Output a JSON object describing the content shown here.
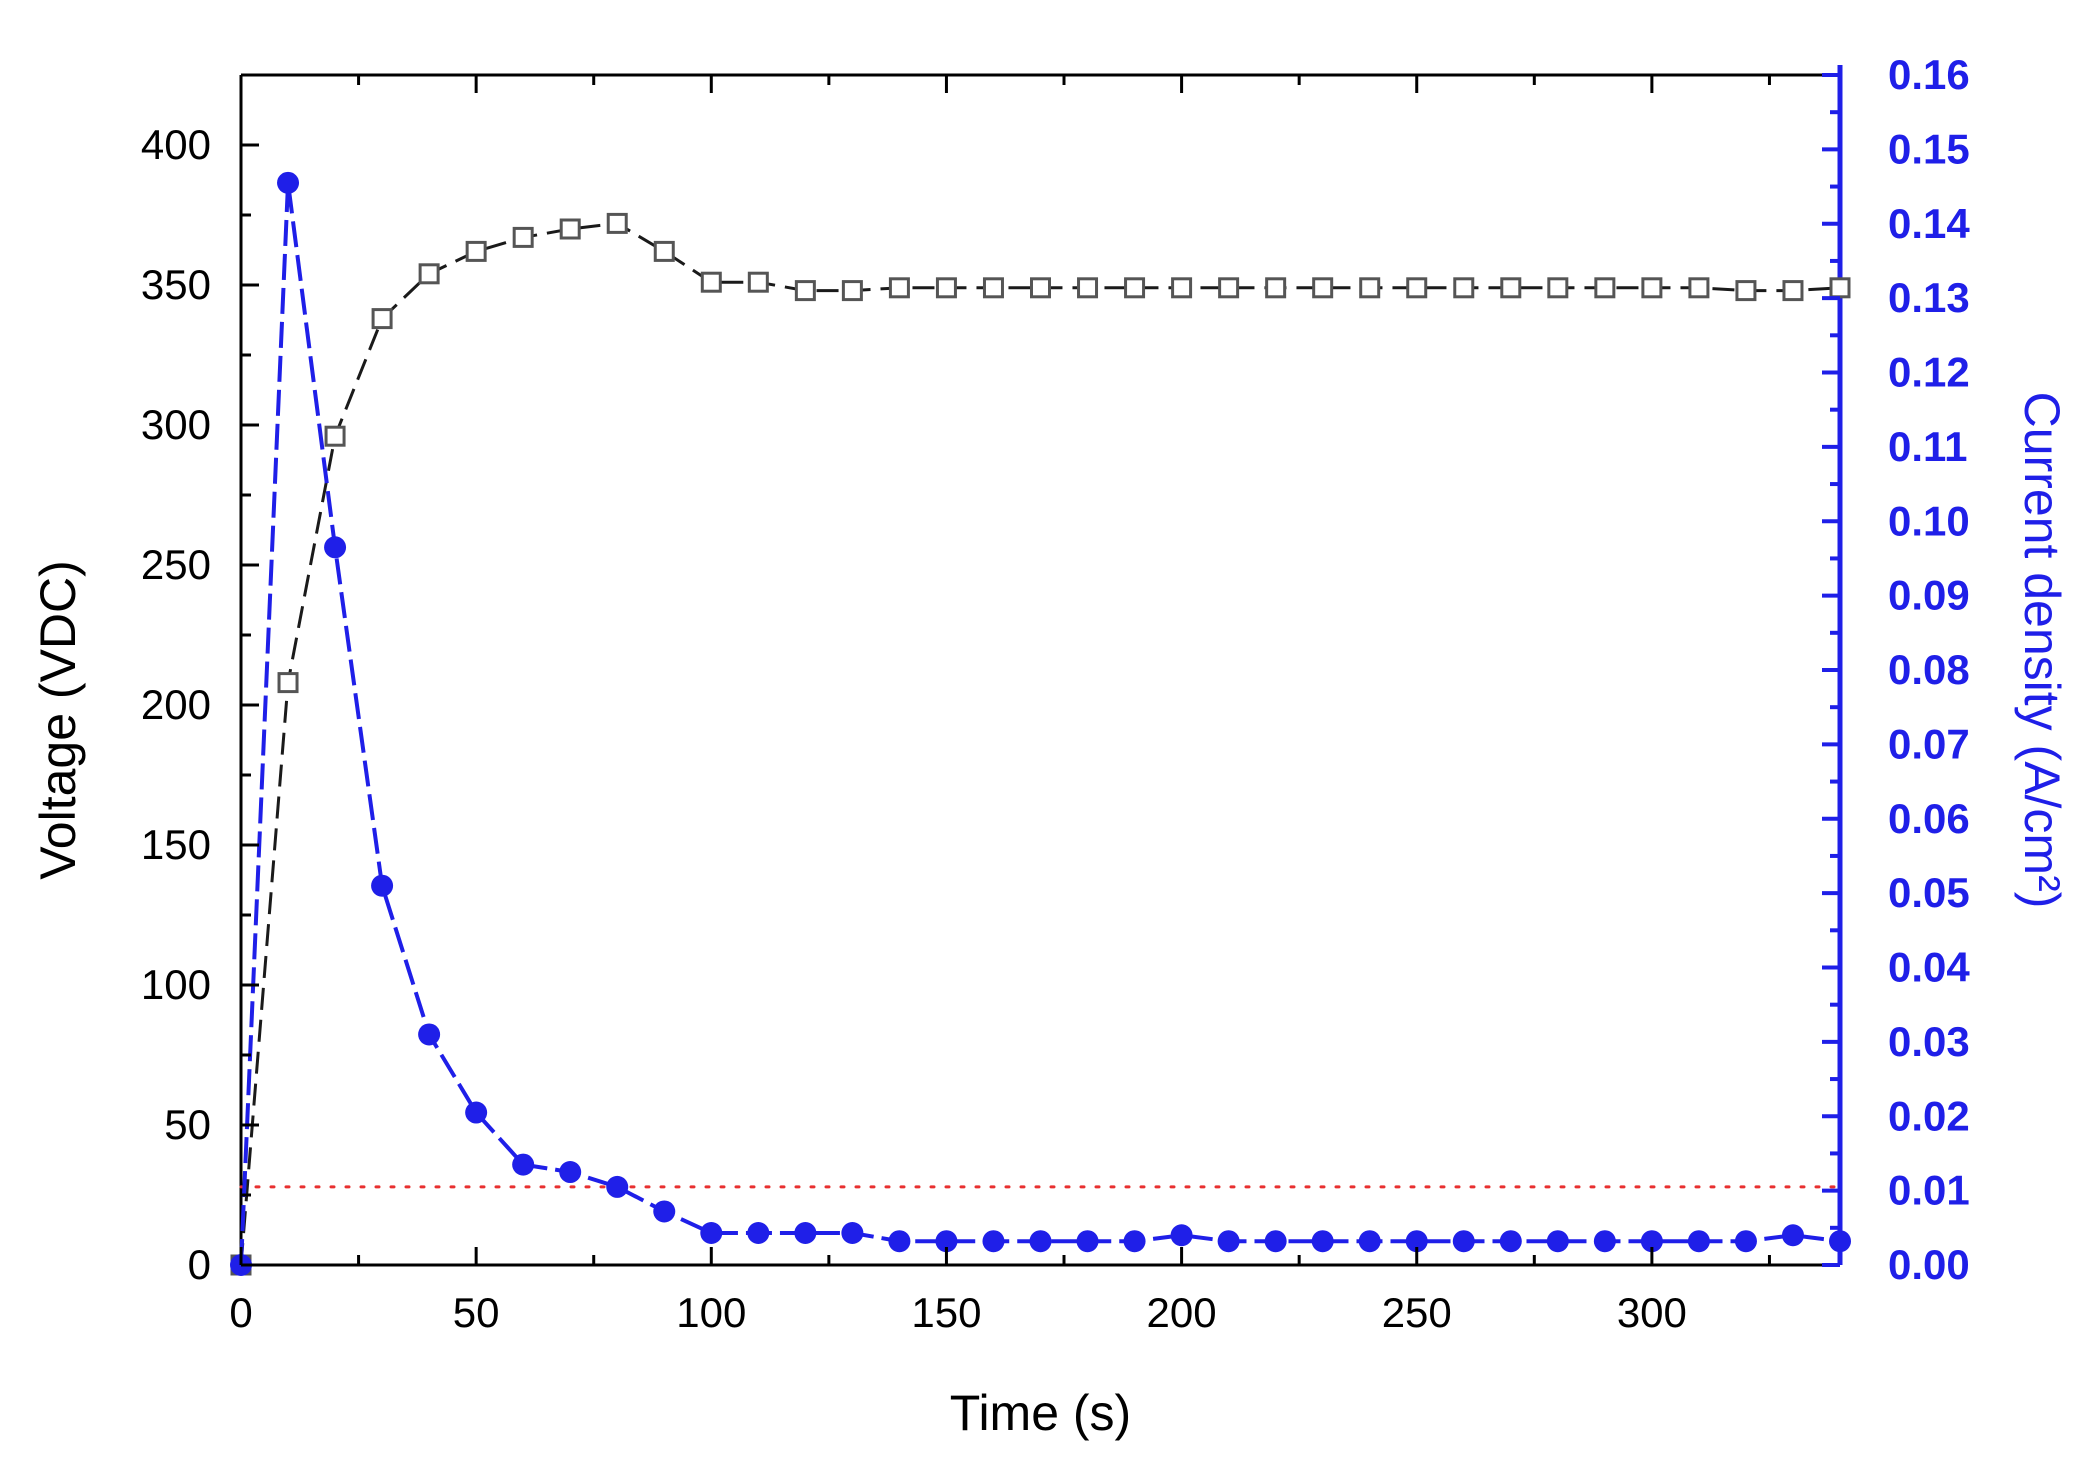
{
  "chart_data": {
    "type": "line",
    "xlabel": "Time (s)",
    "ylabel": "Voltage (VDC)",
    "y2label": "Current density (A/cm²)",
    "xlim": [
      0,
      340
    ],
    "ylim": [
      0,
      425
    ],
    "y2lim": [
      0,
      0.16
    ],
    "xticks": [
      0,
      50,
      100,
      150,
      200,
      250,
      300
    ],
    "yticks": [
      0,
      50,
      100,
      150,
      200,
      250,
      300,
      350,
      400
    ],
    "y2ticks": [
      "0.00",
      "0.01",
      "0.02",
      "0.03",
      "0.04",
      "0.05",
      "0.06",
      "0.07",
      "0.08",
      "0.09",
      "0.10",
      "0.11",
      "0.12",
      "0.13",
      "0.14",
      "0.15",
      "0.16"
    ],
    "grid": false,
    "legend": "none",
    "reference_line": {
      "axis": "y2",
      "value": 0.0105,
      "color": "#e83030",
      "style": "dotted"
    },
    "series": [
      {
        "axis": "left",
        "color": "#1a1a1a",
        "marker": "open-square",
        "x": [
          0,
          10,
          20,
          30,
          40,
          50,
          60,
          70,
          80,
          90,
          100,
          110,
          120,
          130,
          140,
          150,
          160,
          170,
          180,
          190,
          200,
          210,
          220,
          230,
          240,
          250,
          260,
          270,
          280,
          290,
          300,
          310,
          320,
          330,
          340
        ],
        "values": [
          0,
          208,
          296,
          338,
          354,
          362,
          367,
          370,
          372,
          362,
          351,
          351,
          348,
          348,
          349,
          349,
          349,
          349,
          349,
          349,
          349,
          349,
          349,
          349,
          349,
          349,
          349,
          349,
          349,
          349,
          349,
          349,
          348,
          348,
          349
        ]
      },
      {
        "axis": "right",
        "color": "#1f1fe8",
        "marker": "filled-circle",
        "x": [
          0,
          10,
          20,
          30,
          40,
          50,
          60,
          70,
          80,
          90,
          100,
          110,
          120,
          130,
          140,
          150,
          160,
          170,
          180,
          190,
          200,
          210,
          220,
          230,
          240,
          250,
          260,
          270,
          280,
          290,
          300,
          310,
          320,
          330,
          340
        ],
        "values": [
          0,
          0.1455,
          0.0965,
          0.051,
          0.031,
          0.0205,
          0.0135,
          0.0125,
          0.0105,
          0.0072,
          0.0043,
          0.0043,
          0.0043,
          0.0043,
          0.0032,
          0.0032,
          0.0032,
          0.0032,
          0.0032,
          0.0032,
          0.004,
          0.0032,
          0.0032,
          0.0032,
          0.0032,
          0.0032,
          0.0032,
          0.0032,
          0.0032,
          0.0032,
          0.0032,
          0.0032,
          0.0032,
          0.004,
          0.0032
        ]
      }
    ]
  }
}
